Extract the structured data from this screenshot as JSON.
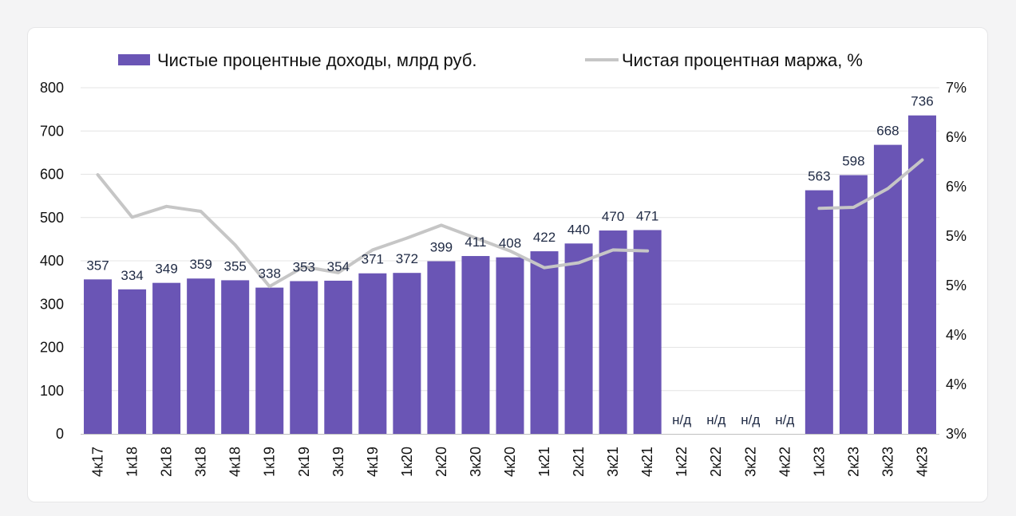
{
  "colors": {
    "bar": "#6a55b5",
    "line": "#c6c6c6",
    "grid": "#e4e4e4",
    "axis": "#bfbfbf"
  },
  "chart_data": {
    "type": "bar",
    "categories": [
      "4к17",
      "1к18",
      "2к18",
      "3к18",
      "4к18",
      "1к19",
      "2к19",
      "3к19",
      "4к19",
      "1к20",
      "2к20",
      "3к20",
      "4к20",
      "1к21",
      "2к21",
      "3к21",
      "4к21",
      "1к22",
      "2к22",
      "3к22",
      "4к22",
      "1к23",
      "2к23",
      "3к23",
      "4к23"
    ],
    "series": [
      {
        "name": "Чистые процентные доходы, млрд руб.",
        "type": "bar",
        "axis": "left",
        "values": [
          357,
          334,
          349,
          359,
          355,
          338,
          353,
          354,
          371,
          372,
          399,
          411,
          408,
          422,
          440,
          470,
          471,
          null,
          null,
          null,
          null,
          563,
          598,
          668,
          736
        ],
        "labels": [
          "357",
          "334",
          "349",
          "359",
          "355",
          "338",
          "353",
          "354",
          "371",
          "372",
          "399",
          "411",
          "408",
          "422",
          "440",
          "470",
          "471",
          "н/д",
          "н/д",
          "н/д",
          "н/д",
          "563",
          "598",
          "668",
          "736"
        ]
      },
      {
        "name": "Чистая процентная маржа, %",
        "type": "line",
        "axis": "right",
        "values": [
          6.12,
          5.69,
          5.8,
          5.75,
          5.41,
          4.99,
          5.19,
          5.13,
          5.36,
          5.48,
          5.61,
          5.48,
          5.35,
          5.18,
          5.23,
          5.36,
          5.35,
          null,
          null,
          null,
          null,
          5.78,
          5.79,
          5.98,
          6.27
        ]
      }
    ],
    "ylim": [
      0,
      800
    ],
    "yticks": [
      "0",
      "100",
      "200",
      "300",
      "400",
      "500",
      "600",
      "700",
      "800"
    ],
    "y2lim": [
      3.5,
      7
    ],
    "y2ticks": [
      "3%",
      "4%",
      "4%",
      "5%",
      "5%",
      "6%",
      "6%",
      "7%"
    ],
    "grid": true,
    "legend": "top-center"
  }
}
